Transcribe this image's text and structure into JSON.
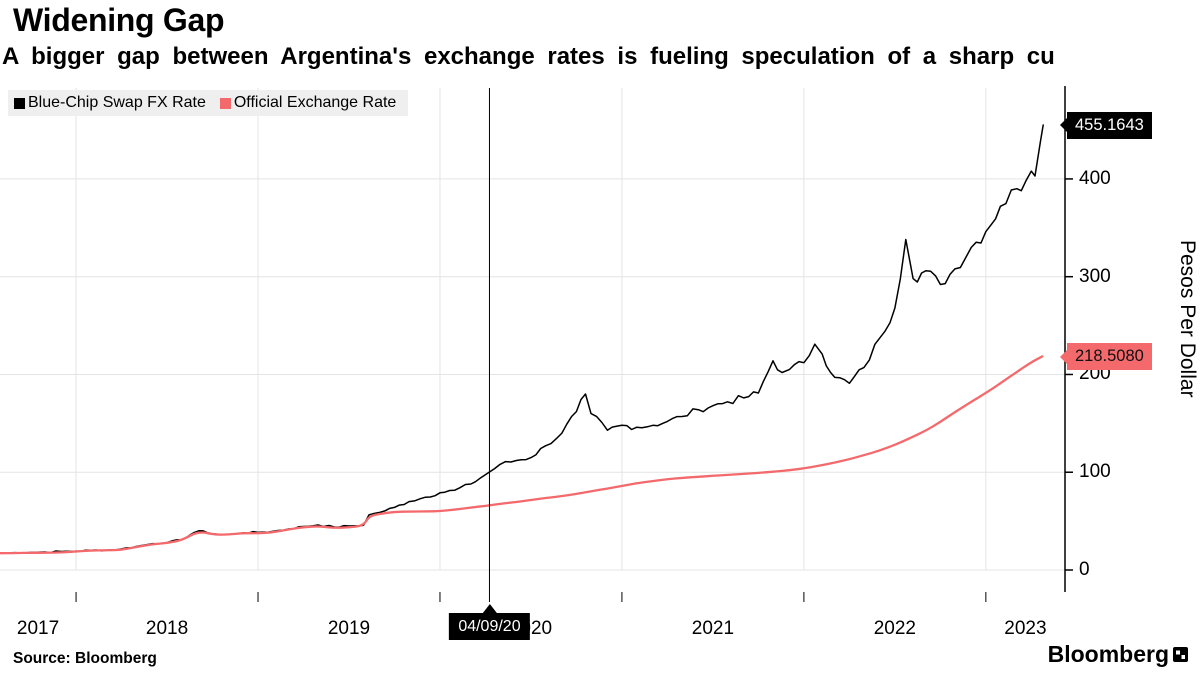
{
  "header": {
    "title": "Widening Gap",
    "subtitle": "A bigger gap between Argentina's exchange rates is fueling speculation of a sharp cu"
  },
  "legend": [
    {
      "label": "Blue-Chip Swap FX Rate",
      "color": "#000000"
    },
    {
      "label": "Official Exchange Rate",
      "color": "#f4696b"
    }
  ],
  "footer": {
    "source": "Source:  Bloomberg",
    "brand": "Bloomberg"
  },
  "colors": {
    "grid": "#e4e4e4",
    "axis": "#000000",
    "crosshair": "#000000",
    "legend_bg": "#efefef",
    "accent_red": "#f4696b"
  },
  "chart_data": {
    "type": "line",
    "title": "Widening Gap",
    "xlabel": "",
    "ylabel": "Pesos Per Dollar",
    "units": "pesos per U.S. dollar, x = decimal year",
    "x_domain_years": [
      2017.582,
      2023.435
    ],
    "ylim": [
      0,
      493
    ],
    "y_ticks": [
      0,
      100,
      200,
      300,
      400
    ],
    "x_tick_years": [
      2017,
      2018,
      2019,
      2020,
      2021,
      2022,
      2023
    ],
    "grid": true,
    "legend_position": "top-left",
    "crosshair": {
      "t": 2020.272,
      "label": "04/09/20"
    },
    "last_values": [
      {
        "series": "Blue-Chip Swap FX Rate",
        "label": "455.1643",
        "value": 455.1643,
        "bg": "#000000",
        "fg": "#ffffff"
      },
      {
        "series": "Official Exchange Rate",
        "label": "218.5080",
        "value": 218.508,
        "bg": "#f4696b",
        "fg": "#111111"
      }
    ],
    "series": [
      {
        "name": "Blue-Chip Swap FX Rate",
        "color": "#000000",
        "stroke_width": 1.5,
        "style": "volatile",
        "points": [
          [
            2017.58,
            17.3
          ],
          [
            2017.67,
            17.8
          ],
          [
            2017.75,
            18.0
          ],
          [
            2017.83,
            18.4
          ],
          [
            2017.92,
            18.9
          ],
          [
            2018.0,
            19.3
          ],
          [
            2018.08,
            20.1
          ],
          [
            2018.17,
            20.4
          ],
          [
            2018.25,
            21.6
          ],
          [
            2018.33,
            24.0
          ],
          [
            2018.42,
            27.0
          ],
          [
            2018.5,
            28.0
          ],
          [
            2018.58,
            31.0
          ],
          [
            2018.65,
            38.5
          ],
          [
            2018.7,
            40.0
          ],
          [
            2018.75,
            37.0
          ],
          [
            2018.83,
            36.0
          ],
          [
            2018.92,
            38.2
          ],
          [
            2019.0,
            38.5
          ],
          [
            2019.08,
            39.5
          ],
          [
            2019.17,
            42.0
          ],
          [
            2019.25,
            44.5
          ],
          [
            2019.33,
            46.0
          ],
          [
            2019.42,
            44.0
          ],
          [
            2019.5,
            45.0
          ],
          [
            2019.58,
            45.8
          ],
          [
            2019.61,
            56.5
          ],
          [
            2019.67,
            59.0
          ],
          [
            2019.75,
            64.0
          ],
          [
            2019.83,
            70.0
          ],
          [
            2019.92,
            74.5
          ],
          [
            2020.0,
            79.0
          ],
          [
            2020.08,
            81.5
          ],
          [
            2020.17,
            88.0
          ],
          [
            2020.27,
            100.0
          ],
          [
            2020.33,
            108.0
          ],
          [
            2020.42,
            112.0
          ],
          [
            2020.5,
            115.0
          ],
          [
            2020.58,
            127.0
          ],
          [
            2020.67,
            140.0
          ],
          [
            2020.75,
            162.0
          ],
          [
            2020.8,
            180.0
          ],
          [
            2020.83,
            160.0
          ],
          [
            2020.92,
            143.0
          ],
          [
            2021.0,
            148.0
          ],
          [
            2021.08,
            146.0
          ],
          [
            2021.17,
            148.0
          ],
          [
            2021.25,
            152.0
          ],
          [
            2021.33,
            157.0
          ],
          [
            2021.42,
            164.0
          ],
          [
            2021.5,
            168.0
          ],
          [
            2021.58,
            172.0
          ],
          [
            2021.67,
            176.0
          ],
          [
            2021.75,
            181.0
          ],
          [
            2021.83,
            214.0
          ],
          [
            2021.88,
            202.0
          ],
          [
            2021.92,
            205.0
          ],
          [
            2022.0,
            212.0
          ],
          [
            2022.06,
            231.0
          ],
          [
            2022.1,
            221.0
          ],
          [
            2022.17,
            197.0
          ],
          [
            2022.25,
            191.0
          ],
          [
            2022.33,
            207.0
          ],
          [
            2022.42,
            238.0
          ],
          [
            2022.5,
            268.0
          ],
          [
            2022.56,
            338.0
          ],
          [
            2022.6,
            298.0
          ],
          [
            2022.67,
            306.0
          ],
          [
            2022.75,
            292.0
          ],
          [
            2022.83,
            308.0
          ],
          [
            2022.92,
            330.0
          ],
          [
            2023.0,
            346.0
          ],
          [
            2023.08,
            372.0
          ],
          [
            2023.17,
            390.0
          ],
          [
            2023.22,
            398.0
          ],
          [
            2023.25,
            408.0
          ],
          [
            2023.27,
            403.0
          ],
          [
            2023.3,
            438.0
          ],
          [
            2023.315,
            455.1643
          ]
        ]
      },
      {
        "name": "Official Exchange Rate",
        "color": "#f4696b",
        "stroke_width": 2.3,
        "style": "smooth",
        "points": [
          [
            2017.58,
            17.2
          ],
          [
            2017.67,
            17.3
          ],
          [
            2017.75,
            17.6
          ],
          [
            2017.83,
            17.6
          ],
          [
            2017.92,
            17.9
          ],
          [
            2018.0,
            18.9
          ],
          [
            2018.08,
            19.9
          ],
          [
            2018.17,
            20.2
          ],
          [
            2018.25,
            20.6
          ],
          [
            2018.33,
            23.5
          ],
          [
            2018.42,
            26.5
          ],
          [
            2018.5,
            27.5
          ],
          [
            2018.58,
            30.5
          ],
          [
            2018.65,
            37.5
          ],
          [
            2018.7,
            38.8
          ],
          [
            2018.75,
            36.5
          ],
          [
            2018.83,
            36.0
          ],
          [
            2018.92,
            37.8
          ],
          [
            2019.0,
            37.4
          ],
          [
            2019.08,
            38.5
          ],
          [
            2019.17,
            41.5
          ],
          [
            2019.25,
            43.8
          ],
          [
            2019.33,
            44.8
          ],
          [
            2019.42,
            43.0
          ],
          [
            2019.5,
            43.5
          ],
          [
            2019.58,
            45.5
          ],
          [
            2019.61,
            55.0
          ],
          [
            2019.67,
            57.5
          ],
          [
            2019.75,
            59.5
          ],
          [
            2019.83,
            59.7
          ],
          [
            2019.92,
            59.9
          ],
          [
            2020.0,
            60.2
          ],
          [
            2020.08,
            61.8
          ],
          [
            2020.17,
            63.8
          ],
          [
            2020.25,
            65.6
          ],
          [
            2020.33,
            67.6
          ],
          [
            2020.42,
            69.6
          ],
          [
            2020.5,
            71.6
          ],
          [
            2020.58,
            73.6
          ],
          [
            2020.67,
            75.6
          ],
          [
            2020.75,
            77.8
          ],
          [
            2020.83,
            80.5
          ],
          [
            2020.92,
            83.3
          ],
          [
            2021.0,
            86.0
          ],
          [
            2021.08,
            88.8
          ],
          [
            2021.17,
            91.0
          ],
          [
            2021.25,
            92.9
          ],
          [
            2021.33,
            94.2
          ],
          [
            2021.42,
            95.4
          ],
          [
            2021.5,
            96.3
          ],
          [
            2021.58,
            97.3
          ],
          [
            2021.67,
            98.3
          ],
          [
            2021.75,
            99.3
          ],
          [
            2021.83,
            100.5
          ],
          [
            2021.92,
            102.0
          ],
          [
            2022.0,
            104.0
          ],
          [
            2022.08,
            106.5
          ],
          [
            2022.17,
            109.8
          ],
          [
            2022.25,
            113.3
          ],
          [
            2022.33,
            117.5
          ],
          [
            2022.42,
            122.3
          ],
          [
            2022.5,
            128.0
          ],
          [
            2022.58,
            134.5
          ],
          [
            2022.67,
            142.5
          ],
          [
            2022.75,
            151.5
          ],
          [
            2022.83,
            161.5
          ],
          [
            2022.92,
            172.0
          ],
          [
            2023.0,
            181.0
          ],
          [
            2023.08,
            191.0
          ],
          [
            2023.17,
            202.5
          ],
          [
            2023.25,
            212.5
          ],
          [
            2023.31,
            218.508
          ]
        ]
      }
    ]
  }
}
